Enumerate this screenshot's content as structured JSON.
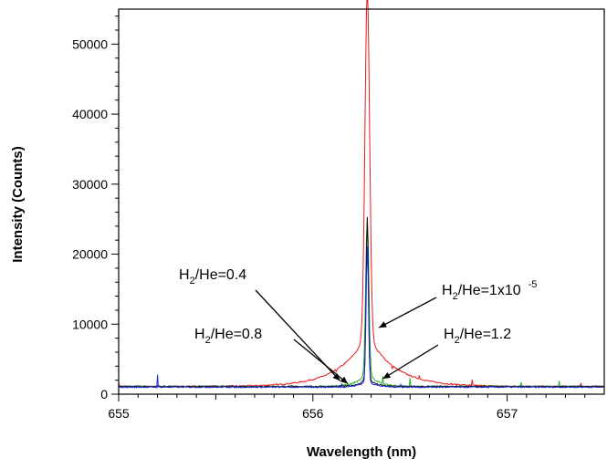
{
  "chart_data": {
    "type": "line",
    "xlabel": "Wavelength (nm)",
    "ylabel": "Intensity (Counts)",
    "xlim": [
      655,
      657.5
    ],
    "ylim": [
      0,
      55000
    ],
    "x_ticks": [
      655,
      656,
      657
    ],
    "x_tick_labels": [
      "655",
      "656",
      "657"
    ],
    "y_ticks": [
      0,
      10000,
      20000,
      30000,
      40000,
      50000
    ],
    "y_tick_labels": [
      "0",
      "10000",
      "20000",
      "30000",
      "40000",
      "50000"
    ],
    "grid": false,
    "peak_center": 656.28,
    "series": [
      {
        "color": "#e8191c",
        "baseline": 1100,
        "peak": 50300,
        "core_width": 0.012,
        "wing_amp": 7500,
        "wing_width": 0.14,
        "spikes": [
          [
            655.0,
            1700
          ],
          [
            656.0,
            2000
          ],
          [
            656.12,
            3200
          ],
          [
            656.41,
            3600
          ],
          [
            656.55,
            2700
          ],
          [
            656.82,
            2100
          ],
          [
            657.38,
            1600
          ]
        ]
      },
      {
        "color": "#2bb02b",
        "baseline": 1100,
        "peak": 23000,
        "core_width": 0.008,
        "wing_amp": 2100,
        "wing_width": 0.05,
        "spikes": [
          [
            656.36,
            2600
          ],
          [
            656.5,
            2300
          ],
          [
            657.07,
            1700
          ],
          [
            657.27,
            1900
          ]
        ]
      },
      {
        "color": "#111111",
        "baseline": 1100,
        "peak": 24000,
        "core_width": 0.006,
        "wing_amp": 1400,
        "wing_width": 0.035,
        "spikes": []
      },
      {
        "color": "#1a2bd6",
        "baseline": 1000,
        "peak": 20000,
        "core_width": 0.006,
        "wing_amp": 1000,
        "wing_width": 0.04,
        "spikes": [
          [
            655.2,
            2800
          ],
          [
            656.15,
            1500
          ],
          [
            656.45,
            1400
          ]
        ]
      }
    ],
    "annotations": [
      {
        "sub": "2",
        "text_after": "/He=0.4",
        "exp": "",
        "x": 656.14,
        "y": 1900
      },
      {
        "sub": "2",
        "text_after": "/He=0.8",
        "exp": "",
        "x": 656.18,
        "y": 1500
      },
      {
        "sub": "2",
        "text_after": "/He=1x10",
        "exp": "-5",
        "x": 656.34,
        "y": 9500
      },
      {
        "sub": "2",
        "text_after": "/He=1.2",
        "exp": "",
        "x": 656.36,
        "y": 2200
      }
    ],
    "annotation_prefix": "H"
  }
}
